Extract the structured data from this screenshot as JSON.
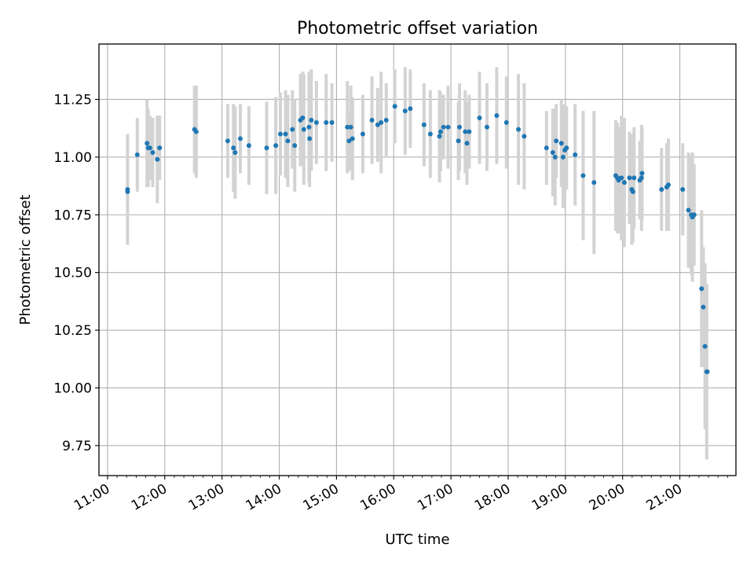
{
  "chart_data": {
    "type": "scatter",
    "title": "Photometric offset variation",
    "xlabel": "UTC time",
    "ylabel": "Photometric offset",
    "x_unit": "hours UTC",
    "xlim": [
      10.85,
      21.98
    ],
    "ylim": [
      9.62,
      11.49
    ],
    "x_ticks": [
      {
        "value": 11,
        "label": "11:00"
      },
      {
        "value": 12,
        "label": "12:00"
      },
      {
        "value": 13,
        "label": "13:00"
      },
      {
        "value": 14,
        "label": "14:00"
      },
      {
        "value": 15,
        "label": "15:00"
      },
      {
        "value": 16,
        "label": "16:00"
      },
      {
        "value": 17,
        "label": "17:00"
      },
      {
        "value": 18,
        "label": "18:00"
      },
      {
        "value": 19,
        "label": "19:00"
      },
      {
        "value": 20,
        "label": "20:00"
      },
      {
        "value": 21,
        "label": "21:00"
      }
    ],
    "y_ticks": [
      {
        "value": 9.75,
        "label": "9.75"
      },
      {
        "value": 10.0,
        "label": "10.00"
      },
      {
        "value": 10.25,
        "label": "10.25"
      },
      {
        "value": 10.5,
        "label": "10.50"
      },
      {
        "value": 10.75,
        "label": "10.75"
      },
      {
        "value": 11.0,
        "label": "11.00"
      },
      {
        "value": 11.25,
        "label": "11.25"
      }
    ],
    "grid": true,
    "point_color": "#1f77b4",
    "errorbar_color": "#d3d3d3",
    "points": [
      [
        11.35,
        10.86,
        0.24
      ],
      [
        11.35,
        10.85,
        0.0
      ],
      [
        11.52,
        11.01,
        0.16
      ],
      [
        11.69,
        11.06,
        0.19
      ],
      [
        11.71,
        11.04,
        0.17
      ],
      [
        11.74,
        11.04,
        0.14
      ],
      [
        11.79,
        11.02,
        0.15
      ],
      [
        11.87,
        10.99,
        0.19
      ],
      [
        11.91,
        11.04,
        0.14
      ],
      [
        12.52,
        11.12,
        0.19
      ],
      [
        12.55,
        11.11,
        0.2
      ],
      [
        13.1,
        11.07,
        0.16
      ],
      [
        13.2,
        11.04,
        0.19
      ],
      [
        13.23,
        11.02,
        0.2
      ],
      [
        13.32,
        11.08,
        0.15
      ],
      [
        13.47,
        11.05,
        0.17
      ],
      [
        13.78,
        11.04,
        0.2
      ],
      [
        13.94,
        11.05,
        0.21
      ],
      [
        14.02,
        11.1,
        0.18
      ],
      [
        14.11,
        11.1,
        0.19
      ],
      [
        14.15,
        11.07,
        0.2
      ],
      [
        14.23,
        11.12,
        0.17
      ],
      [
        14.27,
        11.05,
        0.2
      ],
      [
        14.37,
        11.16,
        0.2
      ],
      [
        14.41,
        11.17,
        0.2
      ],
      [
        14.43,
        11.12,
        0.24
      ],
      [
        14.52,
        11.13,
        0.24
      ],
      [
        14.53,
        11.08,
        0.21
      ],
      [
        14.56,
        11.16,
        0.22
      ],
      [
        14.65,
        11.15,
        0.18
      ],
      [
        14.82,
        11.15,
        0.21
      ],
      [
        14.92,
        11.15,
        0.17
      ],
      [
        15.19,
        11.13,
        0.2
      ],
      [
        15.22,
        11.07,
        0.13
      ],
      [
        15.25,
        11.13,
        0.18
      ],
      [
        15.28,
        11.08,
        0.18
      ],
      [
        15.46,
        11.1,
        0.17
      ],
      [
        15.62,
        11.16,
        0.19
      ],
      [
        15.72,
        11.14,
        0.16
      ],
      [
        15.78,
        11.15,
        0.22
      ],
      [
        15.87,
        11.16,
        0.16
      ],
      [
        16.02,
        11.22,
        0.16
      ],
      [
        16.2,
        11.2,
        0.19
      ],
      [
        16.29,
        11.21,
        0.17
      ],
      [
        16.53,
        11.14,
        0.18
      ],
      [
        16.64,
        11.1,
        0.19
      ],
      [
        16.8,
        11.09,
        0.2
      ],
      [
        16.82,
        11.11,
        0.17
      ],
      [
        16.87,
        11.13,
        0.14
      ],
      [
        16.95,
        11.13,
        0.18
      ],
      [
        17.13,
        11.07,
        0.17
      ],
      [
        17.15,
        11.13,
        0.19
      ],
      [
        17.25,
        11.11,
        0.18
      ],
      [
        17.28,
        11.06,
        0.18
      ],
      [
        17.32,
        11.11,
        0.16
      ],
      [
        17.5,
        11.17,
        0.2
      ],
      [
        17.63,
        11.13,
        0.19
      ],
      [
        17.8,
        11.18,
        0.21
      ],
      [
        17.97,
        11.15,
        0.2
      ],
      [
        18.18,
        11.12,
        0.24
      ],
      [
        18.28,
        11.09,
        0.23
      ],
      [
        18.67,
        11.04,
        0.16
      ],
      [
        18.78,
        11.02,
        0.19
      ],
      [
        18.82,
        11.0,
        0.21
      ],
      [
        18.84,
        11.07,
        0.16
      ],
      [
        18.93,
        11.06,
        0.19
      ],
      [
        18.96,
        11.0,
        0.22
      ],
      [
        18.99,
        11.03,
        0.2
      ],
      [
        19.02,
        11.04,
        0.18
      ],
      [
        19.17,
        11.01,
        0.22
      ],
      [
        19.31,
        10.92,
        0.28
      ],
      [
        19.5,
        10.89,
        0.31
      ],
      [
        19.88,
        10.92,
        0.24
      ],
      [
        19.91,
        10.91,
        0.24
      ],
      [
        19.93,
        10.9,
        0.23
      ],
      [
        19.98,
        10.91,
        0.27
      ],
      [
        20.03,
        10.89,
        0.28
      ],
      [
        20.12,
        10.91,
        0.2
      ],
      [
        20.16,
        10.86,
        0.24
      ],
      [
        20.18,
        10.85,
        0.22
      ],
      [
        20.2,
        10.91,
        0.22
      ],
      [
        20.3,
        10.9,
        0.17
      ],
      [
        20.33,
        10.91,
        0.23
      ],
      [
        20.34,
        10.93,
        0.2
      ],
      [
        20.68,
        10.86,
        0.18
      ],
      [
        20.77,
        10.87,
        0.19
      ],
      [
        20.8,
        10.88,
        0.2
      ],
      [
        21.05,
        10.86,
        0.2
      ],
      [
        21.15,
        10.77,
        0.25
      ],
      [
        21.2,
        10.75,
        0.26
      ],
      [
        21.22,
        10.74,
        0.28
      ],
      [
        21.25,
        10.75,
        0.22
      ],
      [
        21.38,
        10.43,
        0.34
      ],
      [
        21.41,
        10.35,
        0.26
      ],
      [
        21.44,
        10.18,
        0.36
      ],
      [
        21.47,
        10.07,
        0.38
      ],
      [
        21.48,
        10.07,
        0.0
      ]
    ]
  }
}
